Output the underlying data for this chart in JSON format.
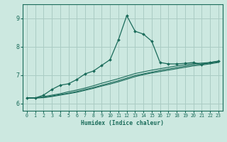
{
  "xlabel": "Humidex (Indice chaleur)",
  "bg_color": "#cce8e0",
  "grid_color": "#aaccc4",
  "line_color": "#1a6b5a",
  "xlim": [
    -0.5,
    23.5
  ],
  "ylim": [
    5.75,
    9.5
  ],
  "yticks": [
    6,
    7,
    8,
    9
  ],
  "xticks": [
    0,
    1,
    2,
    3,
    4,
    5,
    6,
    7,
    8,
    9,
    10,
    11,
    12,
    13,
    14,
    15,
    16,
    17,
    18,
    19,
    20,
    21,
    22,
    23
  ],
  "s1_x": [
    0,
    1,
    2,
    3,
    4,
    5,
    6,
    7,
    8,
    9,
    10,
    11,
    12,
    13,
    14,
    15,
    16,
    17,
    18,
    19,
    20,
    21,
    22,
    23
  ],
  "s1_y": [
    6.2,
    6.2,
    6.3,
    6.5,
    6.65,
    6.7,
    6.85,
    7.05,
    7.15,
    7.35,
    7.55,
    8.25,
    9.1,
    8.55,
    8.45,
    8.2,
    7.45,
    7.4,
    7.4,
    7.42,
    7.45,
    7.38,
    7.45,
    7.5
  ],
  "s2_x": [
    0,
    1,
    2,
    3,
    4,
    5,
    6,
    7,
    8,
    9,
    10,
    11,
    12,
    13,
    14,
    15,
    16,
    17,
    18,
    19,
    20,
    21,
    22,
    23
  ],
  "s2_y": [
    6.2,
    6.2,
    6.25,
    6.3,
    6.35,
    6.42,
    6.48,
    6.55,
    6.63,
    6.72,
    6.8,
    6.88,
    6.97,
    7.06,
    7.12,
    7.18,
    7.23,
    7.28,
    7.33,
    7.37,
    7.41,
    7.43,
    7.45,
    7.49
  ],
  "s3_x": [
    0,
    1,
    2,
    3,
    4,
    5,
    6,
    7,
    8,
    9,
    10,
    11,
    12,
    13,
    14,
    15,
    16,
    17,
    18,
    19,
    20,
    21,
    22,
    23
  ],
  "s3_y": [
    6.2,
    6.2,
    6.22,
    6.27,
    6.32,
    6.37,
    6.43,
    6.5,
    6.57,
    6.65,
    6.73,
    6.81,
    6.9,
    6.99,
    7.05,
    7.11,
    7.17,
    7.22,
    7.27,
    7.32,
    7.37,
    7.4,
    7.43,
    7.47
  ],
  "s4_x": [
    0,
    1,
    2,
    3,
    4,
    5,
    6,
    7,
    8,
    9,
    10,
    11,
    12,
    13,
    14,
    15,
    16,
    17,
    18,
    19,
    20,
    21,
    22,
    23
  ],
  "s4_y": [
    6.2,
    6.2,
    6.21,
    6.25,
    6.3,
    6.35,
    6.4,
    6.47,
    6.54,
    6.62,
    6.69,
    6.77,
    6.86,
    6.95,
    7.02,
    7.08,
    7.13,
    7.18,
    7.23,
    7.28,
    7.33,
    7.36,
    7.4,
    7.45
  ]
}
